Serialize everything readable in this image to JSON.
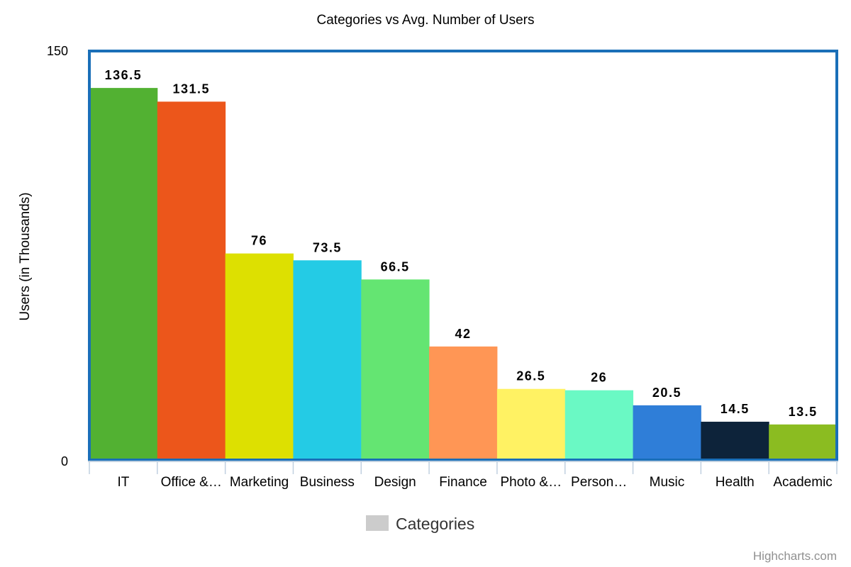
{
  "chart_data": {
    "type": "bar",
    "title": "Categories vs Avg. Number of Users",
    "ylabel": "Users (in Thousands)",
    "ylim": [
      0,
      150
    ],
    "y_ticks": [
      "0",
      "150"
    ],
    "categories": [
      "IT",
      "Office &…",
      "Marketing",
      "Business",
      "Design",
      "Finance",
      "Photo &…",
      "Person…",
      "Music",
      "Health",
      "Academic"
    ],
    "values": [
      136.5,
      131.5,
      76,
      73.5,
      66.5,
      42,
      26.5,
      26,
      20.5,
      14.5,
      13.5
    ],
    "data_labels": [
      "136.5",
      "131.5",
      "76",
      "73.5",
      "66.5",
      "42",
      "26.5",
      "26",
      "20.5",
      "14.5",
      "13.5"
    ],
    "colors": [
      "#52b132",
      "#ec561b",
      "#dde001",
      "#24cbe5",
      "#64e572",
      "#ff9655",
      "#fff263",
      "#6af9c4",
      "#2f7ed8",
      "#0d233a",
      "#8bbc21"
    ],
    "legend": {
      "label": "Categories",
      "swatch_color": "#cccccc",
      "position": "bottom-center"
    },
    "plot_border_color": "#1a6fb8",
    "grid": false
  },
  "credits": "Highcharts.com"
}
